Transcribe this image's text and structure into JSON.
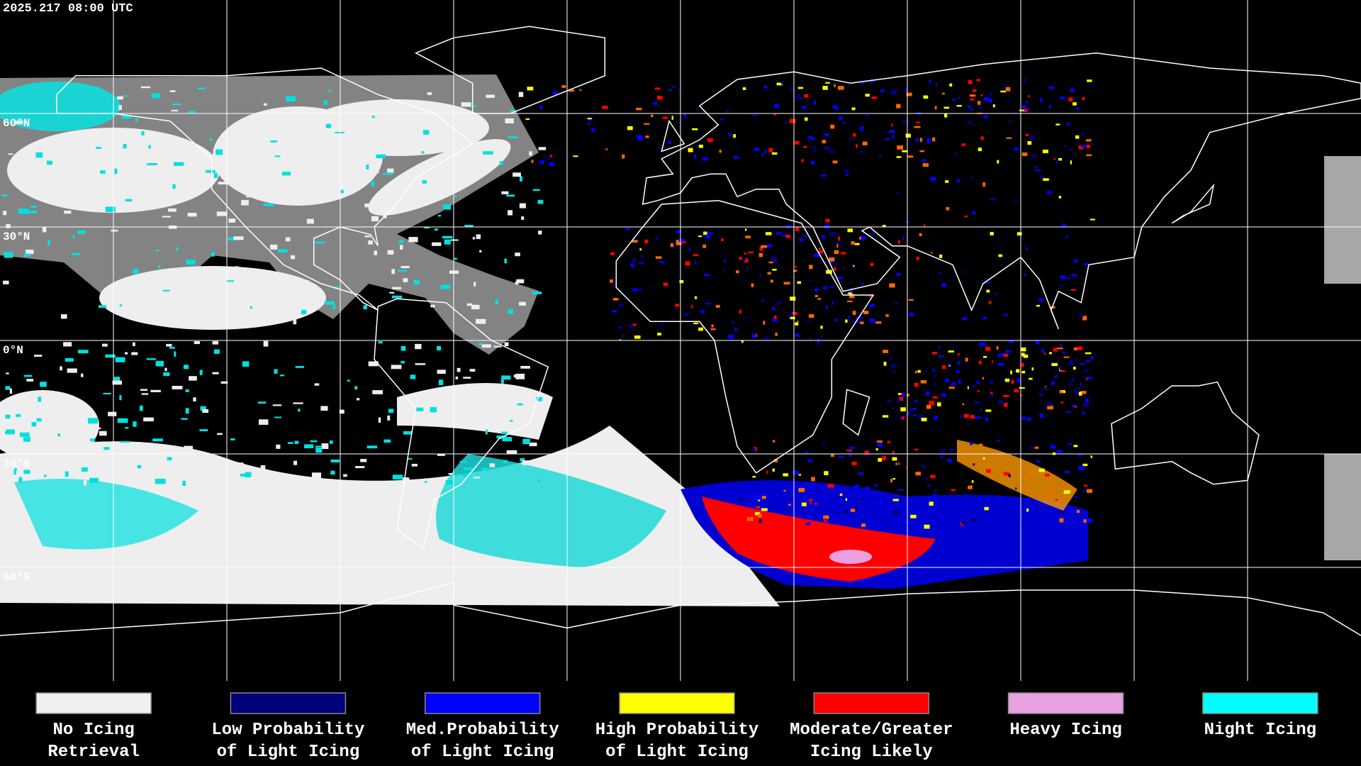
{
  "header": {
    "timestamp": "2025.217 08:00 UTC"
  },
  "lat_labels": [
    "60°N",
    "30°N",
    "0°N",
    "30°S",
    "60°S"
  ],
  "legend": {
    "items": [
      {
        "label": [
          "No Icing",
          "Retrieval"
        ],
        "color": "#f0f0f0"
      },
      {
        "label": [
          "Low Probability",
          "of Light Icing"
        ],
        "color": "#00007c"
      },
      {
        "label": [
          "Med.Probability",
          "of Light Icing"
        ],
        "color": "#0000ff"
      },
      {
        "label": [
          "High Probability",
          "of Light Icing"
        ],
        "color": "#ffff00"
      },
      {
        "label": [
          "Moderate/Greater",
          "Icing Likely"
        ],
        "color": "#ff0000"
      },
      {
        "label": [
          "Heavy Icing"
        ],
        "color": "#e8a0e0"
      },
      {
        "label": [
          "Night Icing"
        ],
        "color": "#00ffff"
      }
    ]
  }
}
